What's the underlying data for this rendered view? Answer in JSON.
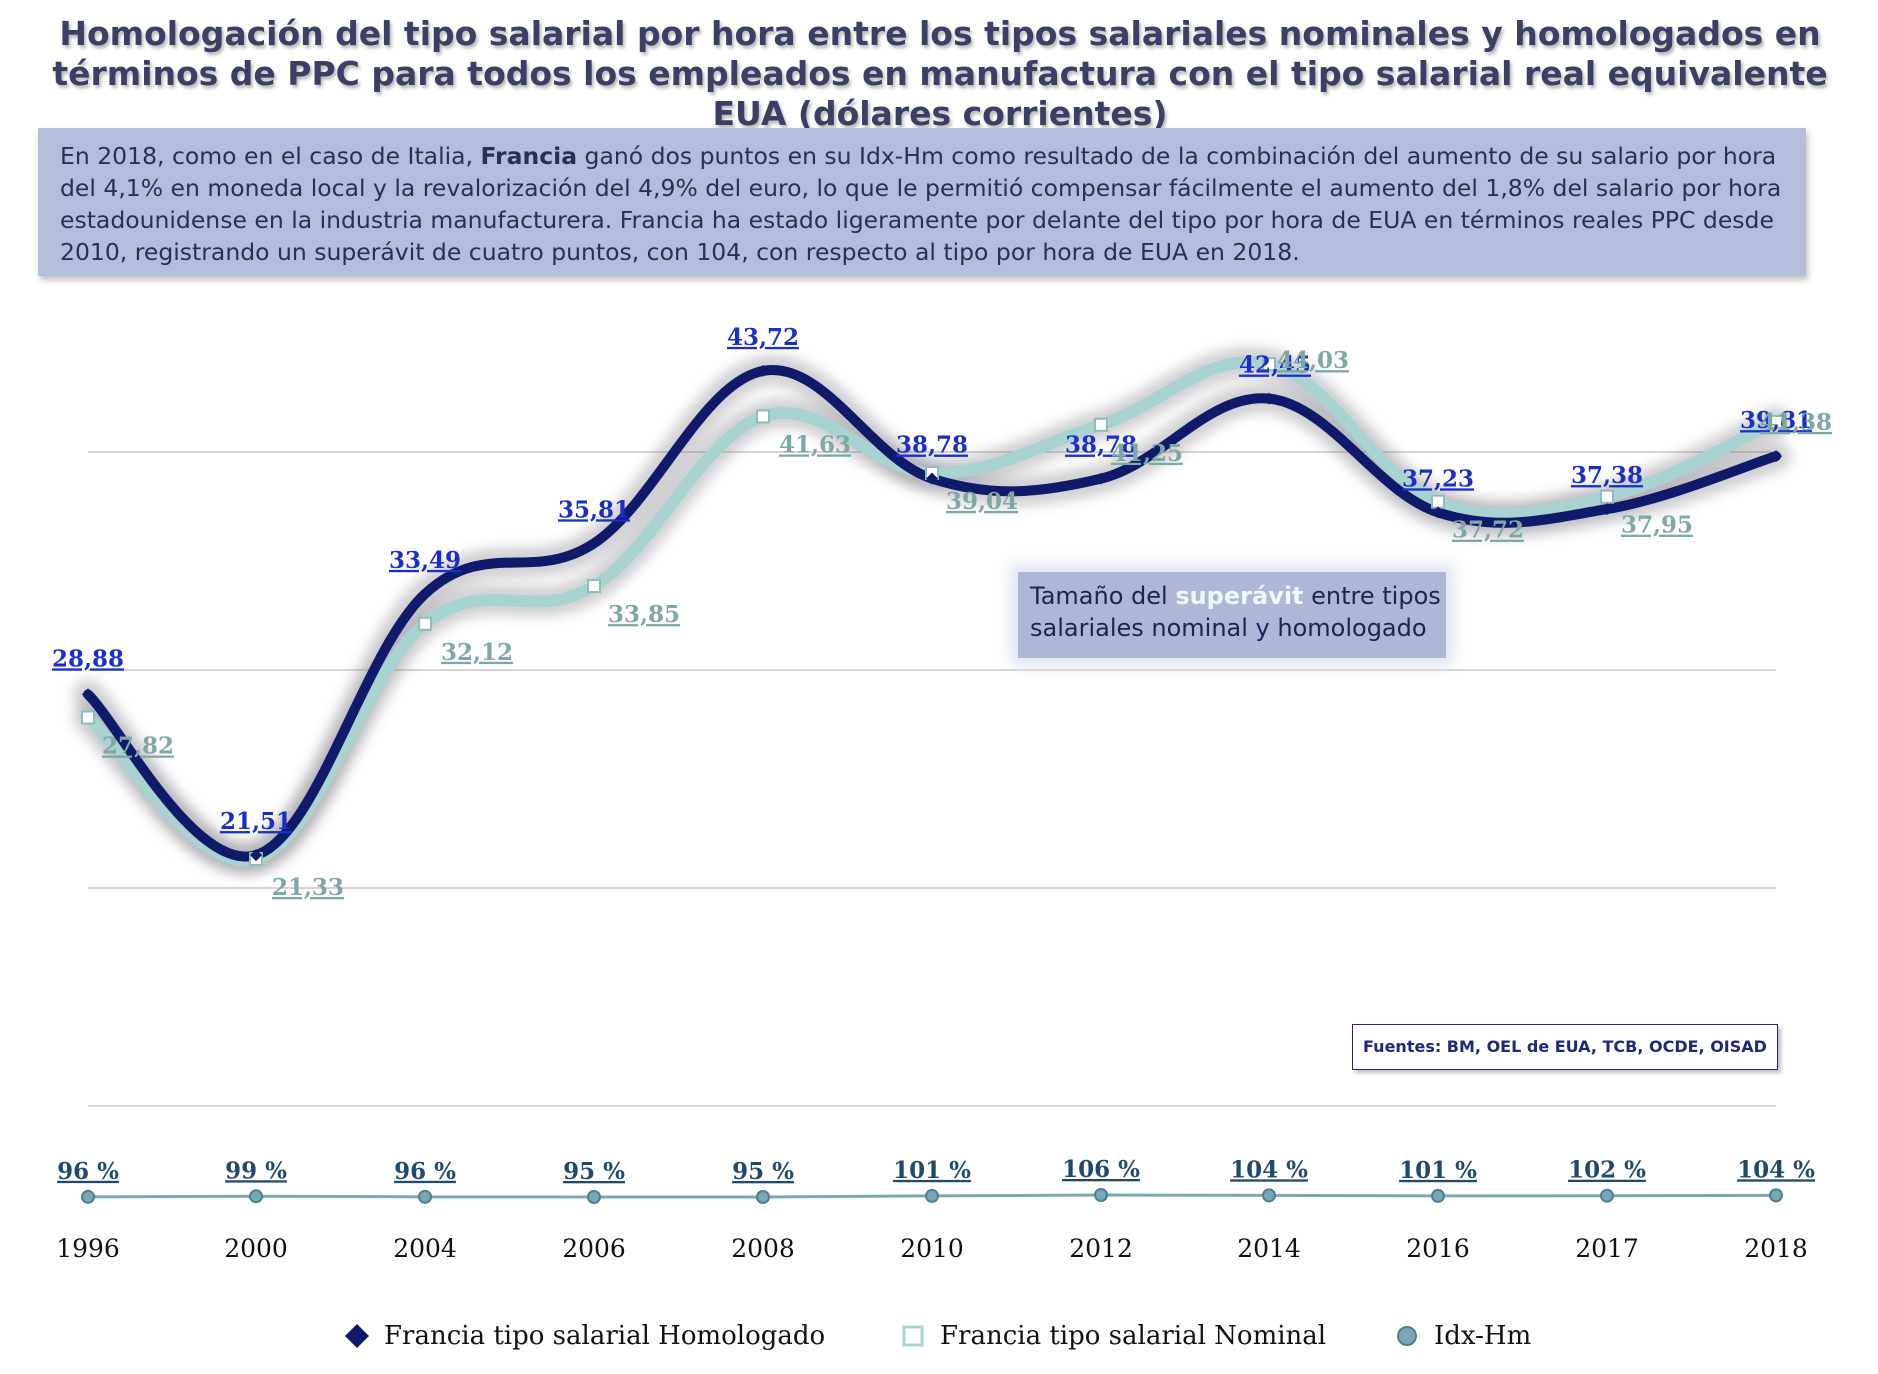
{
  "title": "Homologación del tipo salarial por hora entre los tipos salariales nominales y homologados en términos de PPC para todos los empleados en manufactura con el tipo salarial real equivalente EUA (dólares corrientes)",
  "info": {
    "part1": "En 2018, como en el caso de Italia, ",
    "highlight": "Francia",
    "part2": " ganó dos puntos en su Idx-Hm como resultado de la combinación del aumento de su salario por hora del 4,1% en moneda local y la revalorización del 4,9% del euro, lo que le permitió compensar fácilmente el aumento del 1,8% del salario por hora estadounidense en la industria manufacturera. Francia ha estado ligeramente por delante del tipo por hora de EUA en términos reales PPC desde 2010, registrando un superávit de cuatro puntos, con 104, con respecto al tipo por hora de EUA en 2018."
  },
  "callout": {
    "before": "Tamaño del ",
    "accent": "superávit",
    "after": " entre tipos salariales nominal y homologado"
  },
  "source": "Fuentes: BM, OEL de EUA, TCB, OCDE, OISAD",
  "chart_data": {
    "type": "line",
    "categories": [
      "1996",
      "2000",
      "2004",
      "2006",
      "2008",
      "2010",
      "2012",
      "2014",
      "2016",
      "2017",
      "2018"
    ],
    "series": [
      {
        "name": "Francia tipo salarial Homologado",
        "values": [
          28.88,
          21.51,
          33.49,
          35.81,
          43.72,
          38.78,
          38.78,
          42.45,
          37.23,
          37.38,
          39.81
        ],
        "labels": [
          "28,88",
          "21,51",
          "33,49",
          "35,81",
          "43,72",
          "38,78",
          "38,78",
          "42,45",
          "37,23",
          "37,38",
          "39,81"
        ],
        "color": "#0f1a6b",
        "label_color": "#1a2ec8"
      },
      {
        "name": "Francia tipo salarial Nominal",
        "values": [
          27.82,
          21.33,
          32.12,
          33.85,
          41.63,
          39.04,
          41.25,
          44.03,
          37.72,
          37.95,
          41.38
        ],
        "labels": [
          "27,82",
          "21,33",
          "32,12",
          "33,85",
          "41,63",
          "39,04",
          "41,25",
          "44,03",
          "37,72",
          "37,95",
          "41,38"
        ],
        "color": "#a9d3d0",
        "label_color": "#7ea8a6"
      },
      {
        "name": "Idx-Hm",
        "values": [
          96,
          99,
          96,
          95,
          95,
          101,
          106,
          104,
          101,
          102,
          104
        ],
        "labels": [
          "96 %",
          "99 %",
          "96 %",
          "95 %",
          "95 %",
          "101 %",
          "106 %",
          "104 %",
          "101 %",
          "102 %",
          "104 %"
        ],
        "color": "#7aa7b6",
        "label_color": "#1f4a6e"
      }
    ],
    "y_main_range": [
      10,
      50
    ],
    "grid": true,
    "legend_position": "bottom"
  }
}
